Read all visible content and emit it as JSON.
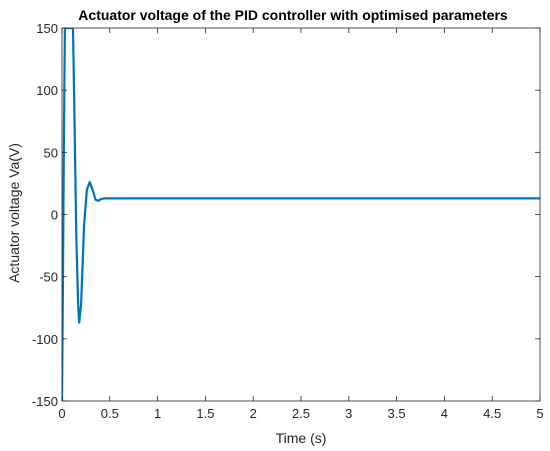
{
  "chart_data": {
    "type": "line",
    "title": "Actuator voltage of the PID controller with optimised parameters",
    "xlabel": "Time (s)",
    "ylabel": "Actuator voltage Va(V)",
    "xlim": [
      0,
      5
    ],
    "ylim": [
      -150,
      150
    ],
    "xticks": [
      0,
      0.5,
      1,
      1.5,
      2,
      2.5,
      3,
      3.5,
      4,
      4.5,
      5
    ],
    "xtick_labels": [
      "0",
      "0.5",
      "1",
      "1.5",
      "2",
      "2.5",
      "3",
      "3.5",
      "4",
      "4.5",
      "5"
    ],
    "yticks": [
      -150,
      -100,
      -50,
      0,
      50,
      100,
      150
    ],
    "ytick_labels": [
      "-150",
      "-100",
      "-50",
      "0",
      "50",
      "100",
      "150"
    ],
    "grid": false,
    "legend": "none",
    "series": [
      {
        "color": "#0072BD",
        "x": [
          0,
          0.01,
          0.02,
          0.03,
          0.04,
          0.1,
          0.115,
          0.13,
          0.15,
          0.17,
          0.18,
          0.2,
          0.23,
          0.26,
          0.29,
          0.32,
          0.35,
          0.38,
          0.41,
          0.45,
          0.5,
          0.6,
          0.8,
          1,
          2,
          3,
          4,
          5
        ],
        "y": [
          -150,
          -50,
          60,
          150,
          150,
          150,
          150,
          80,
          -20,
          -75,
          -87,
          -72,
          -10,
          20,
          26,
          20,
          12,
          11,
          12.5,
          13,
          13,
          13,
          13,
          13,
          13,
          13,
          13,
          13
        ]
      }
    ]
  },
  "colors": {
    "axes": "#262626",
    "line": "#0072BD",
    "background": "#ffffff"
  }
}
